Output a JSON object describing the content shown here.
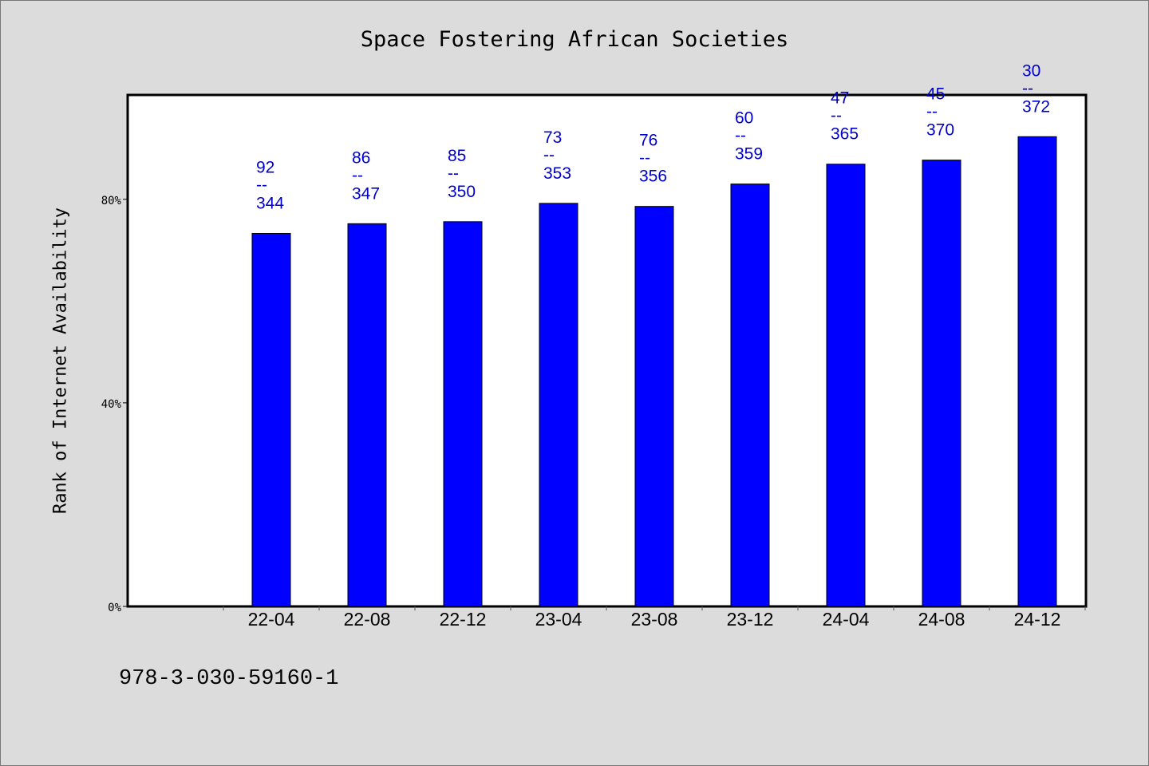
{
  "chart_data": {
    "type": "bar",
    "title": "Space Fostering African Societies",
    "xlabel": "",
    "ylabel": "Rank of Internet Availability",
    "categories": [
      "22-04",
      "22-08",
      "22-12",
      "23-04",
      "23-08",
      "23-12",
      "24-04",
      "24-08",
      "24-12"
    ],
    "values": [
      73.3,
      75.2,
      75.6,
      79.2,
      78.6,
      83.0,
      86.9,
      87.7,
      92.3
    ],
    "data_labels": [
      {
        "top": "92",
        "sep": "--",
        "bottom": "344"
      },
      {
        "top": "86",
        "sep": "--",
        "bottom": "347"
      },
      {
        "top": "85",
        "sep": "--",
        "bottom": "350"
      },
      {
        "top": "73",
        "sep": "--",
        "bottom": "353"
      },
      {
        "top": "76",
        "sep": "--",
        "bottom": "356"
      },
      {
        "top": "60",
        "sep": "--",
        "bottom": "359"
      },
      {
        "top": "47",
        "sep": "--",
        "bottom": "365"
      },
      {
        "top": "45",
        "sep": "--",
        "bottom": "370"
      },
      {
        "top": "30",
        "sep": "--",
        "bottom": "372"
      }
    ],
    "y_ticks": [
      {
        "value": 0,
        "label": "0%"
      },
      {
        "value": 40,
        "label": "40%"
      },
      {
        "value": 80,
        "label": "80%"
      }
    ],
    "ylim": [
      0,
      100.5
    ],
    "grid": false,
    "legend": "none",
    "bar_color": "#0000ff",
    "label_color": "#0000cc"
  },
  "footer": {
    "text": "978-3-030-59160-1"
  }
}
